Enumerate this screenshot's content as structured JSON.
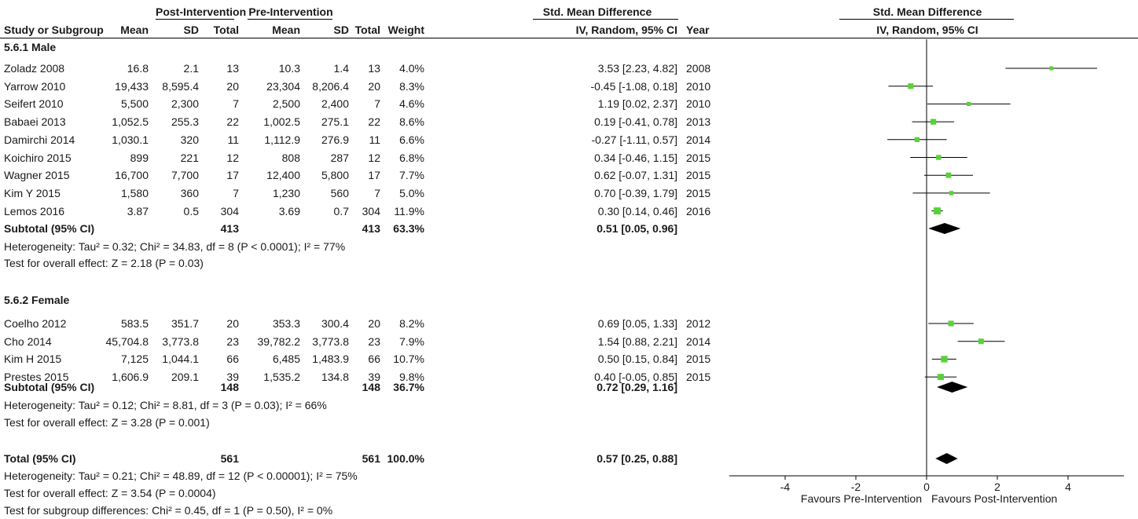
{
  "header": {
    "group_post": "Post-Intervention",
    "group_pre": "Pre-Intervention",
    "effect_title": "Std. Mean Difference",
    "plot_title": "Std. Mean Difference",
    "plot_subtitle": "IV, Random, 95% CI",
    "columns": {
      "study": "Study or Subgroup",
      "post_mean": "Mean",
      "post_sd": "SD",
      "post_total": "Total",
      "pre_mean": "Mean",
      "pre_sd": "SD",
      "pre_total": "Total",
      "weight": "Weight",
      "ci": "IV, Random, 95% CI",
      "year": "Year"
    }
  },
  "subgroups": [
    {
      "title": "5.6.1 Male",
      "subtotal": {
        "label": "Subtotal (95% CI)",
        "post_total": "413",
        "pre_total": "413",
        "weight": "63.3%",
        "ci": "0.51 [0.05, 0.96]"
      },
      "heterogeneity": "Heterogeneity: Tau² = 0.32; Chi² = 34.83, df = 8 (P < 0.0001); I² = 77%",
      "overall": "Test for overall effect: Z = 2.18 (P = 0.03)"
    },
    {
      "title": "5.6.2 Female",
      "subtotal": {
        "label": "Subtotal (95% CI)",
        "post_total": "148",
        "pre_total": "148",
        "weight": "36.7%",
        "ci": "0.72 [0.29, 1.16]"
      },
      "heterogeneity": "Heterogeneity: Tau² = 0.12; Chi² = 8.81, df = 3 (P = 0.03); I² = 66%",
      "overall": "Test for overall effect: Z = 3.28 (P = 0.001)"
    }
  ],
  "total": {
    "label": "Total (95% CI)",
    "post_total": "561",
    "pre_total": "561",
    "weight": "100.0%",
    "ci": "0.57 [0.25, 0.88]",
    "heterogeneity": "Heterogeneity: Tau² = 0.21; Chi² = 48.89, df = 12 (P < 0.00001); I² = 75%",
    "overall": "Test for overall effect: Z = 3.54 (P = 0.0004)",
    "subgroup_diff": "Test for subgroup differences: Chi² = 0.45, df = 1 (P = 0.50), I² = 0%"
  },
  "axis": {
    "ticks": [
      "-4",
      "-2",
      "0",
      "2",
      "4"
    ],
    "favours_left": "Favours Pre-Intervention",
    "favours_right": "Favours Post-Intervention"
  },
  "colors": {
    "point": "#5ad13a",
    "diamond": "#000000",
    "line": "#000000",
    "text": "#1a1a1a"
  },
  "chart_data": {
    "type": "forest",
    "xlim": [
      -4,
      4
    ],
    "null_line": 0,
    "studies": [
      {
        "group": "5.6.1 Male",
        "study": "Zoladz 2008",
        "post_mean": "16.8",
        "post_sd": "2.1",
        "post_total": "13",
        "pre_mean": "10.3",
        "pre_sd": "1.4",
        "pre_total": "13",
        "weight": "4.0%",
        "ci_text": "3.53 [2.23, 4.82]",
        "year": "2008",
        "smd": 3.53,
        "lo": 2.23,
        "hi": 4.82
      },
      {
        "group": "5.6.1 Male",
        "study": "Yarrow 2010",
        "post_mean": "19,433",
        "post_sd": "8,595.4",
        "post_total": "20",
        "pre_mean": "23,304",
        "pre_sd": "8,206.4",
        "pre_total": "20",
        "weight": "8.3%",
        "ci_text": "-0.45 [-1.08, 0.18]",
        "year": "2010",
        "smd": -0.45,
        "lo": -1.08,
        "hi": 0.18
      },
      {
        "group": "5.6.1 Male",
        "study": "Seifert 2010",
        "post_mean": "5,500",
        "post_sd": "2,300",
        "post_total": "7",
        "pre_mean": "2,500",
        "pre_sd": "2,400",
        "pre_total": "7",
        "weight": "4.6%",
        "ci_text": "1.19 [0.02, 2.37]",
        "year": "2010",
        "smd": 1.19,
        "lo": 0.02,
        "hi": 2.37
      },
      {
        "group": "5.6.1 Male",
        "study": "Babaei 2013",
        "post_mean": "1,052.5",
        "post_sd": "255.3",
        "post_total": "22",
        "pre_mean": "1,002.5",
        "pre_sd": "275.1",
        "pre_total": "22",
        "weight": "8.6%",
        "ci_text": "0.19 [-0.41, 0.78]",
        "year": "2013",
        "smd": 0.19,
        "lo": -0.41,
        "hi": 0.78
      },
      {
        "group": "5.6.1 Male",
        "study": "Damirchi 2014",
        "post_mean": "1,030.1",
        "post_sd": "320",
        "post_total": "11",
        "pre_mean": "1,112.9",
        "pre_sd": "276.9",
        "pre_total": "11",
        "weight": "6.6%",
        "ci_text": "-0.27 [-1.11, 0.57]",
        "year": "2014",
        "smd": -0.27,
        "lo": -1.11,
        "hi": 0.57
      },
      {
        "group": "5.6.1 Male",
        "study": "Koichiro 2015",
        "post_mean": "899",
        "post_sd": "221",
        "post_total": "12",
        "pre_mean": "808",
        "pre_sd": "287",
        "pre_total": "12",
        "weight": "6.8%",
        "ci_text": "0.34 [-0.46, 1.15]",
        "year": "2015",
        "smd": 0.34,
        "lo": -0.46,
        "hi": 1.15
      },
      {
        "group": "5.6.1 Male",
        "study": "Wagner 2015",
        "post_mean": "16,700",
        "post_sd": "7,700",
        "post_total": "17",
        "pre_mean": "12,400",
        "pre_sd": "5,800",
        "pre_total": "17",
        "weight": "7.7%",
        "ci_text": "0.62 [-0.07, 1.31]",
        "year": "2015",
        "smd": 0.62,
        "lo": -0.07,
        "hi": 1.31
      },
      {
        "group": "5.6.1 Male",
        "study": "Kim Y 2015",
        "post_mean": "1,580",
        "post_sd": "360",
        "post_total": "7",
        "pre_mean": "1,230",
        "pre_sd": "560",
        "pre_total": "7",
        "weight": "5.0%",
        "ci_text": "0.70 [-0.39, 1.79]",
        "year": "2015",
        "smd": 0.7,
        "lo": -0.39,
        "hi": 1.79
      },
      {
        "group": "5.6.1 Male",
        "study": "Lemos 2016",
        "post_mean": "3.87",
        "post_sd": "0.5",
        "post_total": "304",
        "pre_mean": "3.69",
        "pre_sd": "0.7",
        "pre_total": "304",
        "weight": "11.9%",
        "ci_text": "0.30 [0.14, 0.46]",
        "year": "2016",
        "smd": 0.3,
        "lo": 0.14,
        "hi": 0.46
      },
      {
        "group": "5.6.2 Female",
        "study": "Coelho 2012",
        "post_mean": "583.5",
        "post_sd": "351.7",
        "post_total": "20",
        "pre_mean": "353.3",
        "pre_sd": "300.4",
        "pre_total": "20",
        "weight": "8.2%",
        "ci_text": "0.69 [0.05, 1.33]",
        "year": "2012",
        "smd": 0.69,
        "lo": 0.05,
        "hi": 1.33
      },
      {
        "group": "5.6.2 Female",
        "study": "Cho 2014",
        "post_mean": "45,704.8",
        "post_sd": "3,773.8",
        "post_total": "23",
        "pre_mean": "39,782.2",
        "pre_sd": "3,773.8",
        "pre_total": "23",
        "weight": "7.9%",
        "ci_text": "1.54 [0.88, 2.21]",
        "year": "2014",
        "smd": 1.54,
        "lo": 0.88,
        "hi": 2.21
      },
      {
        "group": "5.6.2 Female",
        "study": "Kim H 2015",
        "post_mean": "7,125",
        "post_sd": "1,044.1",
        "post_total": "66",
        "pre_mean": "6,485",
        "pre_sd": "1,483.9",
        "pre_total": "66",
        "weight": "10.7%",
        "ci_text": "0.50 [0.15, 0.84]",
        "year": "2015",
        "smd": 0.5,
        "lo": 0.15,
        "hi": 0.84
      },
      {
        "group": "5.6.2 Female",
        "study": "Prestes 2015",
        "post_mean": "1,606.9",
        "post_sd": "209.1",
        "post_total": "39",
        "pre_mean": "1,535.2",
        "pre_sd": "134.8",
        "pre_total": "39",
        "weight": "9.8%",
        "ci_text": "0.40 [-0.05, 0.85]",
        "year": "2015",
        "smd": 0.4,
        "lo": -0.05,
        "hi": 0.85
      }
    ],
    "pooled": [
      {
        "label": "Subtotal (95% CI)",
        "group": "5.6.1 Male",
        "smd": 0.51,
        "lo": 0.05,
        "hi": 0.96
      },
      {
        "label": "Subtotal (95% CI)",
        "group": "5.6.2 Female",
        "smd": 0.72,
        "lo": 0.29,
        "hi": 1.16
      },
      {
        "label": "Total (95% CI)",
        "group": "",
        "smd": 0.57,
        "lo": 0.25,
        "hi": 0.88
      }
    ]
  }
}
